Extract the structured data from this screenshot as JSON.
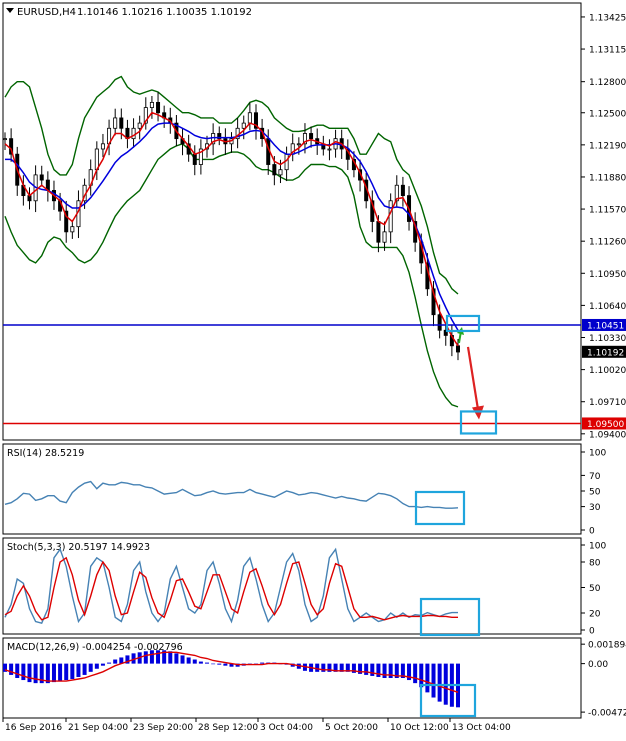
{
  "header": {
    "symbol": "EURUSD,H4",
    "ohlc": "1.10146 1.10216 1.10035 1.10192",
    "menu_icon": "triangle-down-icon"
  },
  "colors": {
    "candle": "#000000",
    "fast_ma": "#dd0000",
    "slow_ma": "#0000dd",
    "bands": "#006400",
    "hline_blue": "#0000cc",
    "hline_red": "#dd0000",
    "box": "#1fa5dd",
    "rsi": "#4682b4",
    "stoch_main": "#4682b4",
    "stoch_signal": "#dd0000",
    "macd_hist": "#0000dd",
    "macd_signal": "#dd0000"
  },
  "chart_data": [
    {
      "type": "line",
      "panel": "price",
      "title": "EURUSD,H4",
      "ylim": [
        1.0935,
        1.1355
      ],
      "y_ticks": [
        "1.13425",
        "1.13115",
        "1.12800",
        "1.12500",
        "1.12190",
        "1.11880",
        "1.11570",
        "1.11260",
        "1.10950",
        "1.10640",
        "1.10330",
        "1.10020",
        "1.09710",
        "1.09400"
      ],
      "price_labels": [
        {
          "label": "1.10451",
          "value": 1.10451
        },
        {
          "label": "1.10192",
          "value": 1.10192
        },
        {
          "label": "1.09500",
          "value": 1.095
        }
      ],
      "hlines": [
        1.10451,
        1.095
      ],
      "series": [
        {
          "values": [
            1.1225,
            1.121,
            1.118,
            1.117,
            1.1165,
            1.119,
            1.1185,
            1.1175,
            1.1165,
            1.1155,
            1.1135,
            1.114,
            1.1165,
            1.118,
            1.1195,
            1.1215,
            1.122,
            1.1235,
            1.1245,
            1.1235,
            1.1225,
            1.1235,
            1.124,
            1.1255,
            1.126,
            1.125,
            1.1245,
            1.124,
            1.1225,
            1.122,
            1.121,
            1.12,
            1.1215,
            1.122,
            1.123,
            1.1225,
            1.122,
            1.1225,
            1.1235,
            1.124,
            1.125,
            1.1235,
            1.1225,
            1.12,
            1.119,
            1.1195,
            1.121,
            1.122,
            1.122,
            1.123,
            1.1225,
            1.122,
            1.1215,
            1.1215,
            1.1225,
            1.1215,
            1.1205,
            1.1195,
            1.1185,
            1.1165,
            1.1145,
            1.1125,
            1.1135,
            1.1165,
            1.118,
            1.117,
            1.1145,
            1.1125,
            1.1105,
            1.108,
            1.1055,
            1.104,
            1.1035,
            1.1025,
            1.1019
          ]
        },
        {
          "values": [
            1.122,
            1.1215,
            1.1195,
            1.118,
            1.117,
            1.1175,
            1.118,
            1.1175,
            1.117,
            1.1165,
            1.115,
            1.1145,
            1.1155,
            1.117,
            1.118,
            1.1195,
            1.1205,
            1.122,
            1.123,
            1.123,
            1.1225,
            1.1228,
            1.1232,
            1.1242,
            1.125,
            1.1248,
            1.1245,
            1.1242,
            1.1232,
            1.1225,
            1.1218,
            1.121,
            1.1212,
            1.1216,
            1.1222,
            1.1224,
            1.1222,
            1.1223,
            1.1228,
            1.1233,
            1.124,
            1.1238,
            1.1232,
            1.1216,
            1.1203,
            1.12,
            1.1204,
            1.1212,
            1.1216,
            1.1222,
            1.1224,
            1.1222,
            1.122,
            1.1218,
            1.1222,
            1.122,
            1.1213,
            1.1203,
            1.1192,
            1.1178,
            1.1162,
            1.1145,
            1.1142,
            1.1154,
            1.1167,
            1.1168,
            1.1157,
            1.1141,
            1.1122,
            1.1099,
            1.1076,
            1.1058,
            1.1046,
            1.1034,
            1.1025
          ]
        },
        {
          "values": [
            1.1205,
            1.1205,
            1.12,
            1.1192,
            1.1183,
            1.1178,
            1.1176,
            1.1175,
            1.1172,
            1.1168,
            1.1162,
            1.1158,
            1.1158,
            1.1162,
            1.1168,
            1.1176,
            1.1184,
            1.1193,
            1.1202,
            1.1208,
            1.1212,
            1.1217,
            1.1222,
            1.1228,
            1.1235,
            1.1239,
            1.124,
            1.124,
            1.1238,
            1.1235,
            1.1232,
            1.1228,
            1.1226,
            1.1225,
            1.1226,
            1.1226,
            1.1226,
            1.1226,
            1.1227,
            1.1229,
            1.1232,
            1.1233,
            1.1232,
            1.1226,
            1.1219,
            1.1213,
            1.121,
            1.121,
            1.1212,
            1.1215,
            1.1218,
            1.1219,
            1.1219,
            1.1219,
            1.122,
            1.1219,
            1.1216,
            1.121,
            1.1203,
            1.1193,
            1.1181,
            1.1168,
            1.116,
            1.1158,
            1.1159,
            1.1158,
            1.1152,
            1.1142,
            1.1128,
            1.111,
            1.1092,
            1.1075,
            1.1062,
            1.105,
            1.104
          ]
        },
        {
          "values": [
            1.1265,
            1.1275,
            1.128,
            1.128,
            1.1275,
            1.1255,
            1.1235,
            1.121,
            1.1195,
            1.119,
            1.119,
            1.12,
            1.1225,
            1.1245,
            1.1255,
            1.1265,
            1.127,
            1.1275,
            1.1282,
            1.1285,
            1.1275,
            1.127,
            1.1268,
            1.127,
            1.1272,
            1.127,
            1.1265,
            1.126,
            1.1255,
            1.125,
            1.125,
            1.1248,
            1.1245,
            1.1245,
            1.1245,
            1.124,
            1.124,
            1.124,
            1.1245,
            1.1252,
            1.126,
            1.1262,
            1.126,
            1.1255,
            1.1245,
            1.124,
            1.1235,
            1.1232,
            1.1232,
            1.1233,
            1.1236,
            1.1238,
            1.1238,
            1.1235,
            1.1235,
            1.1235,
            1.1235,
            1.1225,
            1.121,
            1.121,
            1.122,
            1.123,
            1.1225,
            1.1222,
            1.1205,
            1.1195,
            1.119,
            1.1175,
            1.116,
            1.114,
            1.1115,
            1.1095,
            1.109,
            1.108,
            1.1075
          ]
        },
        {
          "values": [
            1.115,
            1.1135,
            1.1122,
            1.1115,
            1.1108,
            1.1105,
            1.1112,
            1.1125,
            1.113,
            1.1128,
            1.112,
            1.1115,
            1.1108,
            1.1105,
            1.1108,
            1.1115,
            1.1125,
            1.1138,
            1.115,
            1.1158,
            1.1165,
            1.117,
            1.1175,
            1.1185,
            1.1195,
            1.1205,
            1.121,
            1.1215,
            1.1218,
            1.122,
            1.1215,
            1.1205,
            1.1205,
            1.1205,
            1.1205,
            1.1208,
            1.121,
            1.1212,
            1.1212,
            1.121,
            1.1205,
            1.1198,
            1.1195,
            1.1195,
            1.1192,
            1.1188,
            1.1185,
            1.1185,
            1.1188,
            1.1195,
            1.12,
            1.12,
            1.12,
            1.1198,
            1.1198,
            1.1195,
            1.1188,
            1.117,
            1.114,
            1.1125,
            1.112,
            1.112,
            1.112,
            1.112,
            1.112,
            1.1112,
            1.1096,
            1.1072,
            1.1045,
            1.102,
            1.1,
            1.0985,
            1.0975,
            1.0968,
            1.0966
          ]
        }
      ]
    },
    {
      "type": "line",
      "panel": "rsi",
      "title": "RSI(14) 28.5219",
      "ylim": [
        0,
        100
      ],
      "y_ticks": [
        "100",
        "70",
        "50",
        "30",
        "0"
      ],
      "series": [
        {
          "values": [
            33,
            35,
            40,
            47,
            46,
            38,
            40,
            44,
            44,
            37,
            35,
            48,
            55,
            60,
            62,
            53,
            60,
            58,
            58,
            61,
            60,
            58,
            58,
            55,
            54,
            50,
            46,
            47,
            48,
            52,
            48,
            44,
            45,
            48,
            50,
            47,
            46,
            47,
            48,
            48,
            52,
            48,
            46,
            44,
            42,
            46,
            50,
            48,
            45,
            46,
            48,
            47,
            45,
            43,
            41,
            43,
            41,
            40,
            38,
            37,
            42,
            47,
            46,
            44,
            40,
            34,
            30,
            30,
            29,
            30,
            29,
            29,
            28,
            28,
            28.5
          ]
        }
      ]
    },
    {
      "type": "line",
      "panel": "stochastic",
      "title": "Stoch(5,3,3) 20.5197 14.9923",
      "ylim": [
        0,
        100
      ],
      "y_ticks": [
        "100",
        "80",
        "50",
        "20",
        "0"
      ],
      "series": [
        {
          "values": [
            15,
            30,
            60,
            55,
            25,
            10,
            8,
            25,
            85,
            95,
            75,
            40,
            10,
            20,
            75,
            85,
            80,
            50,
            15,
            10,
            30,
            70,
            80,
            45,
            20,
            10,
            20,
            60,
            75,
            50,
            25,
            20,
            30,
            70,
            80,
            55,
            25,
            10,
            35,
            75,
            85,
            60,
            30,
            10,
            20,
            50,
            80,
            90,
            70,
            30,
            10,
            15,
            40,
            85,
            95,
            60,
            25,
            10,
            15,
            20,
            15,
            10,
            12,
            20,
            15,
            20,
            15,
            18,
            17,
            20.5,
            18,
            16,
            19,
            20.5,
            20.5
          ]
        },
        {
          "values": [
            18,
            22,
            40,
            52,
            40,
            22,
            12,
            15,
            50,
            80,
            85,
            65,
            35,
            18,
            40,
            65,
            80,
            70,
            40,
            18,
            20,
            45,
            68,
            62,
            38,
            20,
            15,
            35,
            58,
            60,
            45,
            28,
            25,
            45,
            65,
            65,
            45,
            25,
            20,
            45,
            68,
            72,
            52,
            30,
            18,
            30,
            55,
            78,
            80,
            55,
            30,
            18,
            25,
            55,
            78,
            75,
            50,
            25,
            15,
            15,
            16,
            14,
            12,
            14,
            16,
            17,
            16,
            16,
            16,
            17,
            17,
            16,
            16,
            15,
            15
          ]
        }
      ]
    },
    {
      "type": "bar",
      "panel": "macd",
      "title": "MACD(12,26,9) -0.004254 -0.002796",
      "ylim": [
        -0.0051,
        0.0023
      ],
      "y_ticks": [
        "0.001894",
        "0.00",
        "-0.004721"
      ],
      "series": [
        {
          "name": "histogram",
          "values": [
            -0.0008,
            -0.0011,
            -0.0014,
            -0.0016,
            -0.0018,
            -0.0019,
            -0.0019,
            -0.0019,
            -0.0018,
            -0.0017,
            -0.0016,
            -0.0015,
            -0.0013,
            -0.0011,
            -0.0008,
            -0.0005,
            -0.0002,
            0.0001,
            0.0004,
            0.0006,
            0.0008,
            0.001,
            0.0011,
            0.0012,
            0.0013,
            0.0013,
            0.0013,
            0.0012,
            0.001,
            0.0008,
            0.0006,
            0.0004,
            0.0002,
            0.0001,
            0.0,
            -0.0001,
            -0.0002,
            -0.0003,
            -0.0003,
            -0.0002,
            -0.0001,
            0.0,
            0.0001,
            0.0001,
            0.0001,
            0.0,
            -0.0001,
            -0.0003,
            -0.0005,
            -0.0007,
            -0.0008,
            -0.0008,
            -0.0008,
            -0.0008,
            -0.0008,
            -0.0008,
            -0.0008,
            -0.0009,
            -0.001,
            -0.0011,
            -0.0012,
            -0.0013,
            -0.0014,
            -0.0014,
            -0.0014,
            -0.0014,
            -0.0016,
            -0.0019,
            -0.0023,
            -0.0028,
            -0.0033,
            -0.0037,
            -0.004,
            -0.0042,
            -0.004254
          ]
        },
        {
          "name": "signal",
          "values": [
            -0.0006,
            -0.0008,
            -0.001,
            -0.0012,
            -0.0014,
            -0.0015,
            -0.0016,
            -0.0017,
            -0.0017,
            -0.0017,
            -0.0017,
            -0.0016,
            -0.0015,
            -0.0014,
            -0.0012,
            -0.001,
            -0.0008,
            -0.0005,
            -0.0002,
            0.0,
            0.0002,
            0.0004,
            0.0006,
            0.0008,
            0.0009,
            0.001,
            0.0011,
            0.0011,
            0.0011,
            0.001,
            0.0009,
            0.0008,
            0.0006,
            0.0005,
            0.0003,
            0.0002,
            0.0001,
            0.0,
            -0.0001,
            -0.0001,
            -0.0001,
            -0.0001,
            -0.0001,
            0.0,
            0.0,
            0.0,
            0.0,
            -0.0001,
            -0.0002,
            -0.0003,
            -0.0004,
            -0.0005,
            -0.0006,
            -0.0006,
            -0.0007,
            -0.0007,
            -0.0007,
            -0.0007,
            -0.0008,
            -0.0008,
            -0.0009,
            -0.001,
            -0.0011,
            -0.0011,
            -0.0012,
            -0.0012,
            -0.0013,
            -0.0014,
            -0.0016,
            -0.0018,
            -0.002,
            -0.0022,
            -0.0024,
            -0.0026,
            -0.002796
          ]
        }
      ]
    }
  ],
  "x_axis": {
    "labels": [
      "16 Sep 2016",
      "21 Sep 04:00",
      "23 Sep 20:00",
      "28 Sep 12:00",
      "3 Oct 04:00",
      "5 Oct 20:00",
      "10 Oct 12:00",
      "13 Oct 04:00"
    ]
  }
}
